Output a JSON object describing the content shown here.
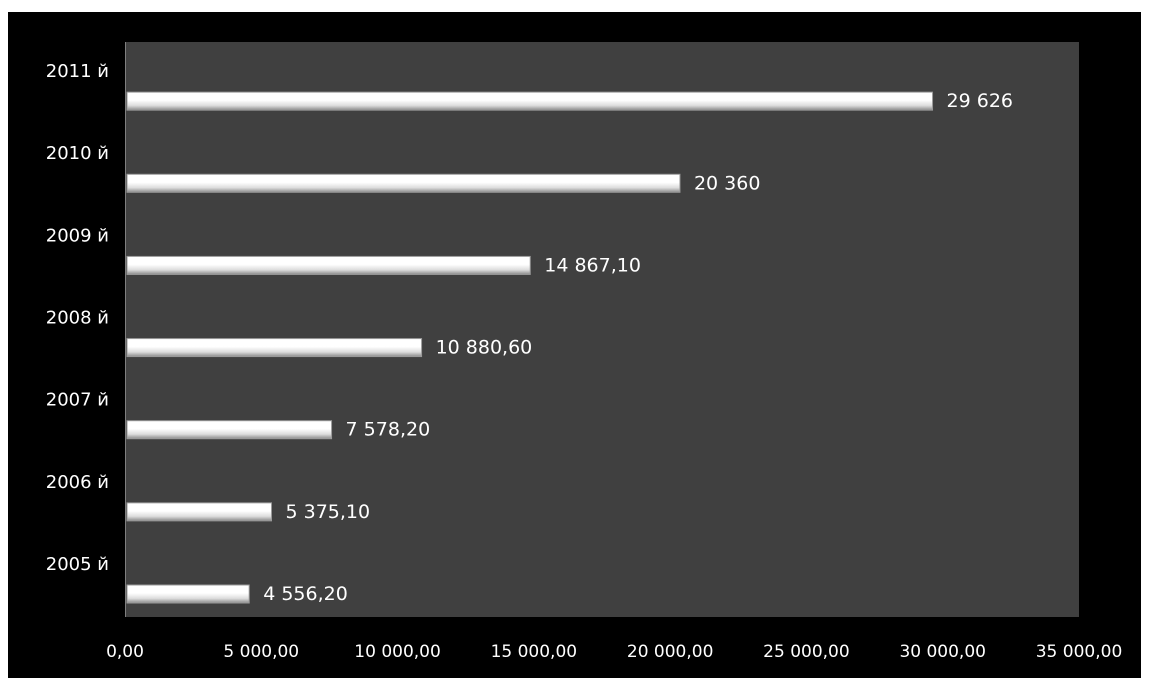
{
  "chart_data": {
    "type": "bar",
    "orientation": "horizontal",
    "title": "",
    "xlabel": "",
    "ylabel": "",
    "categories": [
      "2005 й",
      "2006 й",
      "2007 й",
      "2008 й",
      "2009 й",
      "2010 й",
      "2011 й"
    ],
    "values": [
      4556.2,
      5375.1,
      7578.2,
      10880.6,
      14867.1,
      20360,
      29626
    ],
    "value_labels": [
      "4 556,20",
      "5 375,10",
      "7 578,20",
      "10 880,60",
      "14 867,10",
      "20 360",
      "29 626"
    ],
    "xlim": [
      0,
      35000
    ],
    "x_ticks": [
      0,
      5000,
      10000,
      15000,
      20000,
      25000,
      30000,
      35000
    ],
    "x_tick_labels": [
      "0,00",
      "5 000,00",
      "10 000,00",
      "15 000,00",
      "20 000,00",
      "25 000,00",
      "30 000,00",
      "35 000,00"
    ],
    "grid": false,
    "legend": "none",
    "colors": {
      "page_background": "#000000",
      "plot_background": "#404040",
      "bar_fill": "#ffffff",
      "bar_shadow": "#9a9a9a",
      "text": "#ffffff",
      "axis": "#7f7f7f"
    }
  }
}
